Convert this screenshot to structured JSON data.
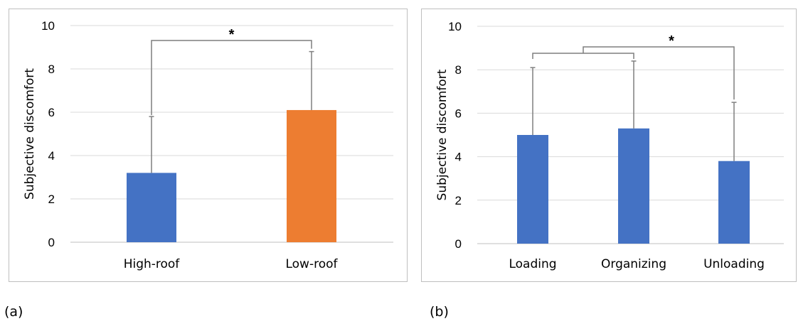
{
  "chart_data": [
    {
      "type": "bar",
      "panel_label": "(a)",
      "categories": [
        "High-roof",
        "Low-roof"
      ],
      "values": [
        3.2,
        6.1
      ],
      "error_upper": [
        5.8,
        8.8
      ],
      "bar_colors": [
        "#4472c4",
        "#ed7d31"
      ],
      "ylabel": "Subjective discomfort",
      "xlabel": "",
      "ylim": [
        0,
        10
      ],
      "yticks": [
        "0",
        "2",
        "4",
        "6",
        "8",
        "10"
      ],
      "grid": true,
      "significance": [
        {
          "between": [
            "High-roof",
            "Low-roof"
          ],
          "label": "*"
        }
      ]
    },
    {
      "type": "bar",
      "panel_label": "(b)",
      "categories": [
        "Loading",
        "Organizing",
        "Unloading"
      ],
      "values": [
        5.0,
        5.3,
        3.8
      ],
      "error_upper": [
        8.1,
        8.4,
        6.5
      ],
      "bar_colors": [
        "#4472c4",
        "#4472c4",
        "#4472c4"
      ],
      "ylabel": "Subjective discomfort",
      "xlabel": "",
      "ylim": [
        0,
        10
      ],
      "yticks": [
        "0",
        "2",
        "4",
        "6",
        "8",
        "10"
      ],
      "grid": true,
      "significance": [
        {
          "between": [
            "Loading+Organizing",
            "Unloading"
          ],
          "label": "*"
        }
      ]
    }
  ]
}
